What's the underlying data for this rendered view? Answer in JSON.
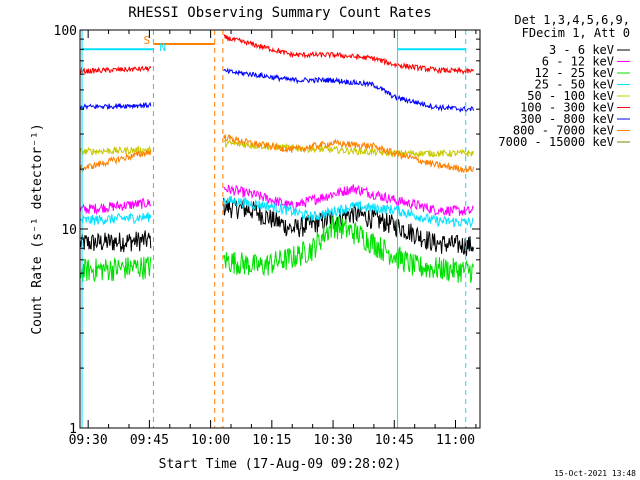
{
  "chart_data": {
    "type": "line",
    "title": "RHESSI Observing Summary Count Rates",
    "xlabel": "Start Time (17-Aug-09 09:28:02)",
    "ylabel": "Count Rate (s⁻¹ detector⁻¹)",
    "yscale": "log",
    "ylim": [
      1,
      100
    ],
    "xlim_minutes": [
      -2,
      96
    ],
    "x_ticks": [
      {
        "label": "09:30",
        "minute": 0
      },
      {
        "label": "09:45",
        "minute": 15
      },
      {
        "label": "10:00",
        "minute": 30
      },
      {
        "label": "10:15",
        "minute": 45
      },
      {
        "label": "10:30",
        "minute": 60
      },
      {
        "label": "10:45",
        "minute": 75
      },
      {
        "label": "11:00",
        "minute": 90
      }
    ],
    "y_ticks": [
      {
        "label": "1",
        "value": 1
      },
      {
        "label": "10",
        "value": 10
      },
      {
        "label": "100",
        "value": 100
      }
    ],
    "legend": {
      "header": [
        "Det 1,3,4,5,6,9,",
        "FDecim 1, Att 0"
      ],
      "placement": "right"
    },
    "markers": [
      {
        "label": "S",
        "minute": 16,
        "style": "dashed",
        "color": "#ff8000"
      },
      {
        "label": "N",
        "minute": 16,
        "style": "dashed",
        "color": "#00e0ff"
      },
      {
        "label": "",
        "minute": 31,
        "style": "dashed",
        "color": "#ff8000"
      },
      {
        "label": "",
        "minute": 33,
        "style": "dashed",
        "color": "#ff8000"
      },
      {
        "label": "",
        "minute": -1.5,
        "style": "solid",
        "color": "#00e0ff"
      },
      {
        "label": "",
        "minute": 75.8,
        "style": "solid",
        "color": "#00e0ff"
      },
      {
        "label": "",
        "minute": 92.5,
        "style": "dashed",
        "color": "#00e0ff"
      }
    ],
    "flag_bars": [
      {
        "color": "#00e0ff",
        "level": 80,
        "segments": [
          [
            -1.5,
            16
          ],
          [
            75.8,
            92.5
          ]
        ]
      },
      {
        "color": "#ff8000",
        "level": 85,
        "segments": [
          [
            16,
            31
          ]
        ]
      }
    ],
    "series": [
      {
        "name": "3 - 6 keV",
        "color": "#000000",
        "level": [
          [
            -2,
            8.5
          ],
          [
            15,
            8.8
          ],
          [
            33.2,
            13
          ],
          [
            40,
            12.5
          ],
          [
            50,
            10
          ],
          [
            58,
            11
          ],
          [
            65,
            12
          ],
          [
            75,
            10.5
          ],
          [
            85,
            8.5
          ],
          [
            92,
            8.3
          ]
        ],
        "noise": 0.12
      },
      {
        "name": "6 - 12 keV",
        "color": "#ff00ff",
        "level": [
          [
            -2,
            12.5
          ],
          [
            15,
            13.5
          ],
          [
            33.2,
            16
          ],
          [
            40,
            15
          ],
          [
            50,
            13
          ],
          [
            60,
            15
          ],
          [
            65,
            16
          ],
          [
            75,
            14
          ],
          [
            85,
            12.5
          ],
          [
            92,
            12.3
          ]
        ],
        "noise": 0.06
      },
      {
        "name": "12 - 25 keV",
        "color": "#00e000",
        "level": [
          [
            -2,
            6.2
          ],
          [
            15,
            6.5
          ],
          [
            33.2,
            7
          ],
          [
            42,
            6.5
          ],
          [
            50,
            7.2
          ],
          [
            55,
            8
          ],
          [
            60,
            10.5
          ],
          [
            66,
            9.5
          ],
          [
            72,
            8
          ],
          [
            80,
            6.5
          ],
          [
            92,
            6.2
          ]
        ],
        "noise": 0.14
      },
      {
        "name": "25 - 50 keV",
        "color": "#00e0ff",
        "level": [
          [
            -2,
            11
          ],
          [
            15,
            11.5
          ],
          [
            33.2,
            14
          ],
          [
            45,
            13
          ],
          [
            55,
            11.5
          ],
          [
            65,
            13
          ],
          [
            75,
            12.5
          ],
          [
            85,
            11
          ],
          [
            92,
            10.8
          ]
        ],
        "noise": 0.06
      },
      {
        "name": "50 - 100 keV",
        "color": "#c8c800",
        "level": [
          [
            -2,
            24.5
          ],
          [
            15,
            25
          ],
          [
            33.2,
            27
          ],
          [
            50,
            25.5
          ],
          [
            60,
            25
          ],
          [
            75,
            24
          ],
          [
            92,
            24
          ]
        ],
        "noise": 0.04
      },
      {
        "name": "100 - 300 keV",
        "color": "#ff0000",
        "level": [
          [
            -2,
            62
          ],
          [
            15,
            64
          ],
          [
            33.2,
            92
          ],
          [
            40,
            85
          ],
          [
            50,
            75
          ],
          [
            60,
            75
          ],
          [
            70,
            72
          ],
          [
            75,
            67
          ],
          [
            85,
            63
          ],
          [
            92,
            62
          ]
        ],
        "noise": 0.03
      },
      {
        "name": "300 - 800 keV",
        "color": "#0000ff",
        "level": [
          [
            -2,
            41
          ],
          [
            15,
            42
          ],
          [
            33.2,
            62
          ],
          [
            40,
            60
          ],
          [
            50,
            56
          ],
          [
            60,
            56
          ],
          [
            70,
            53
          ],
          [
            75,
            46
          ],
          [
            85,
            41
          ],
          [
            92,
            40
          ]
        ],
        "noise": 0.03
      },
      {
        "name": "800 - 7000 keV",
        "color": "#ff8000",
        "level": [
          [
            -2,
            20
          ],
          [
            33.2,
            29
          ],
          [
            40,
            27
          ],
          [
            50,
            25
          ],
          [
            60,
            27
          ],
          [
            70,
            26
          ],
          [
            75,
            24
          ],
          [
            85,
            21
          ],
          [
            92,
            20
          ]
        ],
        "noise": 0.04
      },
      {
        "name": "7000 - 15000 keV",
        "color": "#808000",
        "level": [],
        "noise": 0
      }
    ]
  },
  "footer": {
    "timestamp": "15-Oct-2021 13:48"
  }
}
